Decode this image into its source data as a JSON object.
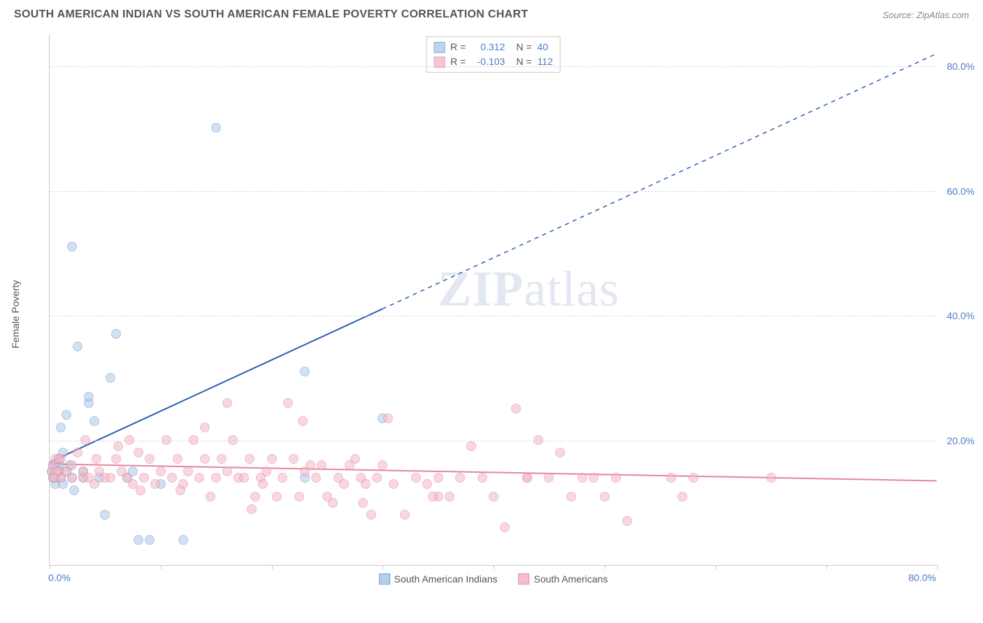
{
  "header": {
    "title": "SOUTH AMERICAN INDIAN VS SOUTH AMERICAN FEMALE POVERTY CORRELATION CHART",
    "source": "Source: ZipAtlas.com"
  },
  "watermark": {
    "zip": "ZIP",
    "atlas": "atlas"
  },
  "chart": {
    "type": "scatter",
    "y_axis_title": "Female Poverty",
    "xlim": [
      0,
      80
    ],
    "ylim": [
      0,
      85
    ],
    "x_ticks": [
      0,
      10,
      20,
      30,
      40,
      50,
      60,
      70,
      80
    ],
    "y_ticks": [
      20,
      40,
      60,
      80
    ],
    "x_tick_labels": {
      "0": "0.0%",
      "80": "80.0%"
    },
    "y_tick_labels": {
      "20": "20.0%",
      "40": "40.0%",
      "60": "60.0%",
      "80": "80.0%"
    },
    "grid_color": "#d8d8d8",
    "axis_color": "#c8c8c8",
    "label_color": "#4a7bc8",
    "label_fontsize": 14,
    "background_color": "#ffffff",
    "marker_radius": 7,
    "series": [
      {
        "name": "South American Indians",
        "fill": "#aec9e8",
        "fill_opacity": 0.55,
        "stroke": "#6b9bd1",
        "trend": {
          "color": "#2c5fb3",
          "width": 2,
          "y_start": 16.5,
          "y_end": 82,
          "x_solid_end": 30,
          "dashed": true
        },
        "R": "0.312",
        "N": "40",
        "points": [
          [
            0.2,
            15
          ],
          [
            0.3,
            14
          ],
          [
            0.3,
            16
          ],
          [
            0.5,
            13
          ],
          [
            0.5,
            14.5
          ],
          [
            0.6,
            16
          ],
          [
            0.8,
            15
          ],
          [
            0.8,
            17
          ],
          [
            1,
            22
          ],
          [
            1,
            14
          ],
          [
            1.2,
            13
          ],
          [
            1.2,
            18
          ],
          [
            1.5,
            15
          ],
          [
            1.5,
            24
          ],
          [
            2,
            14
          ],
          [
            2,
            51
          ],
          [
            2.2,
            12
          ],
          [
            2.5,
            35
          ],
          [
            3,
            15
          ],
          [
            3,
            14
          ],
          [
            3.5,
            26
          ],
          [
            3.5,
            27
          ],
          [
            4,
            23
          ],
          [
            4.5,
            14
          ],
          [
            5,
            8
          ],
          [
            5.5,
            30
          ],
          [
            6,
            37
          ],
          [
            7,
            14
          ],
          [
            7.5,
            15
          ],
          [
            8,
            4
          ],
          [
            9,
            4
          ],
          [
            10,
            13
          ],
          [
            12,
            4
          ],
          [
            15,
            70
          ],
          [
            23,
            31
          ],
          [
            23,
            14
          ],
          [
            30,
            23.5
          ],
          [
            1.8,
            16
          ],
          [
            0.4,
            14
          ],
          [
            0.9,
            16
          ]
        ]
      },
      {
        "name": "South Americans",
        "fill": "#f5b8c8",
        "fill_opacity": 0.55,
        "stroke": "#e3879e",
        "trend": {
          "color": "#e3879e",
          "width": 2,
          "y_start": 16.2,
          "y_end": 13.5,
          "x_solid_end": 80,
          "dashed": false
        },
        "R": "-0.103",
        "N": "112",
        "points": [
          [
            0.2,
            15
          ],
          [
            0.3,
            16
          ],
          [
            0.5,
            14
          ],
          [
            0.5,
            17
          ],
          [
            0.8,
            15
          ],
          [
            1,
            14
          ],
          [
            1,
            17
          ],
          [
            1.5,
            15
          ],
          [
            2,
            14
          ],
          [
            2,
            16
          ],
          [
            3,
            14
          ],
          [
            3,
            15
          ],
          [
            3.5,
            14
          ],
          [
            4,
            13
          ],
          [
            4.5,
            15
          ],
          [
            5,
            14
          ],
          [
            5.5,
            14
          ],
          [
            6,
            17
          ],
          [
            6.5,
            15
          ],
          [
            7,
            14
          ],
          [
            7.5,
            13
          ],
          [
            8,
            18
          ],
          [
            8.5,
            14
          ],
          [
            9,
            17
          ],
          [
            9.5,
            13
          ],
          [
            10,
            15
          ],
          [
            10.5,
            20
          ],
          [
            11,
            14
          ],
          [
            11.5,
            17
          ],
          [
            12,
            13
          ],
          [
            12.5,
            15
          ],
          [
            13,
            20
          ],
          [
            13.5,
            14
          ],
          [
            14,
            17
          ],
          [
            14.5,
            11
          ],
          [
            15,
            14
          ],
          [
            15.5,
            17
          ],
          [
            16,
            15
          ],
          [
            16.5,
            20
          ],
          [
            17,
            14
          ],
          [
            17.5,
            14
          ],
          [
            18,
            17
          ],
          [
            18.5,
            11
          ],
          [
            19,
            14
          ],
          [
            19.5,
            15
          ],
          [
            20,
            17
          ],
          [
            20.5,
            11
          ],
          [
            21,
            14
          ],
          [
            21.5,
            26
          ],
          [
            22,
            17
          ],
          [
            22.5,
            11
          ],
          [
            23,
            15
          ],
          [
            23.5,
            16
          ],
          [
            24,
            14
          ],
          [
            24.5,
            16
          ],
          [
            25,
            11
          ],
          [
            25.5,
            10
          ],
          [
            26,
            14
          ],
          [
            26.5,
            13
          ],
          [
            27,
            16
          ],
          [
            27.5,
            17
          ],
          [
            28,
            14
          ],
          [
            28.5,
            13
          ],
          [
            29,
            8
          ],
          [
            29.5,
            14
          ],
          [
            30,
            16
          ],
          [
            30.5,
            23.5
          ],
          [
            31,
            13
          ],
          [
            32,
            8
          ],
          [
            33,
            14
          ],
          [
            34,
            13
          ],
          [
            35,
            14
          ],
          [
            36,
            11
          ],
          [
            37,
            14
          ],
          [
            38,
            19
          ],
          [
            39,
            14
          ],
          [
            40,
            11
          ],
          [
            41,
            6
          ],
          [
            42,
            25
          ],
          [
            43,
            14
          ],
          [
            44,
            20
          ],
          [
            45,
            14
          ],
          [
            46,
            18
          ],
          [
            47,
            11
          ],
          [
            48,
            14
          ],
          [
            49,
            14
          ],
          [
            50,
            11
          ],
          [
            51,
            14
          ],
          [
            52,
            7
          ],
          [
            43,
            14
          ],
          [
            56,
            14
          ],
          [
            57,
            11
          ],
          [
            58,
            14
          ],
          [
            65,
            14
          ],
          [
            35,
            11
          ],
          [
            14,
            22
          ],
          [
            16,
            26
          ],
          [
            2.5,
            18
          ],
          [
            3.2,
            20
          ],
          [
            4.2,
            17
          ],
          [
            6.2,
            19
          ],
          [
            7.2,
            20
          ],
          [
            8.2,
            12
          ],
          [
            11.8,
            12
          ],
          [
            18.2,
            9
          ],
          [
            19.2,
            13
          ],
          [
            28.2,
            10
          ],
          [
            34.5,
            11
          ],
          [
            22.8,
            23
          ],
          [
            0.6,
            15
          ],
          [
            0.3,
            14
          ],
          [
            0.8,
            17
          ]
        ]
      }
    ],
    "legend_box": {
      "r_label": "R  =",
      "n_label": "N  ="
    }
  }
}
